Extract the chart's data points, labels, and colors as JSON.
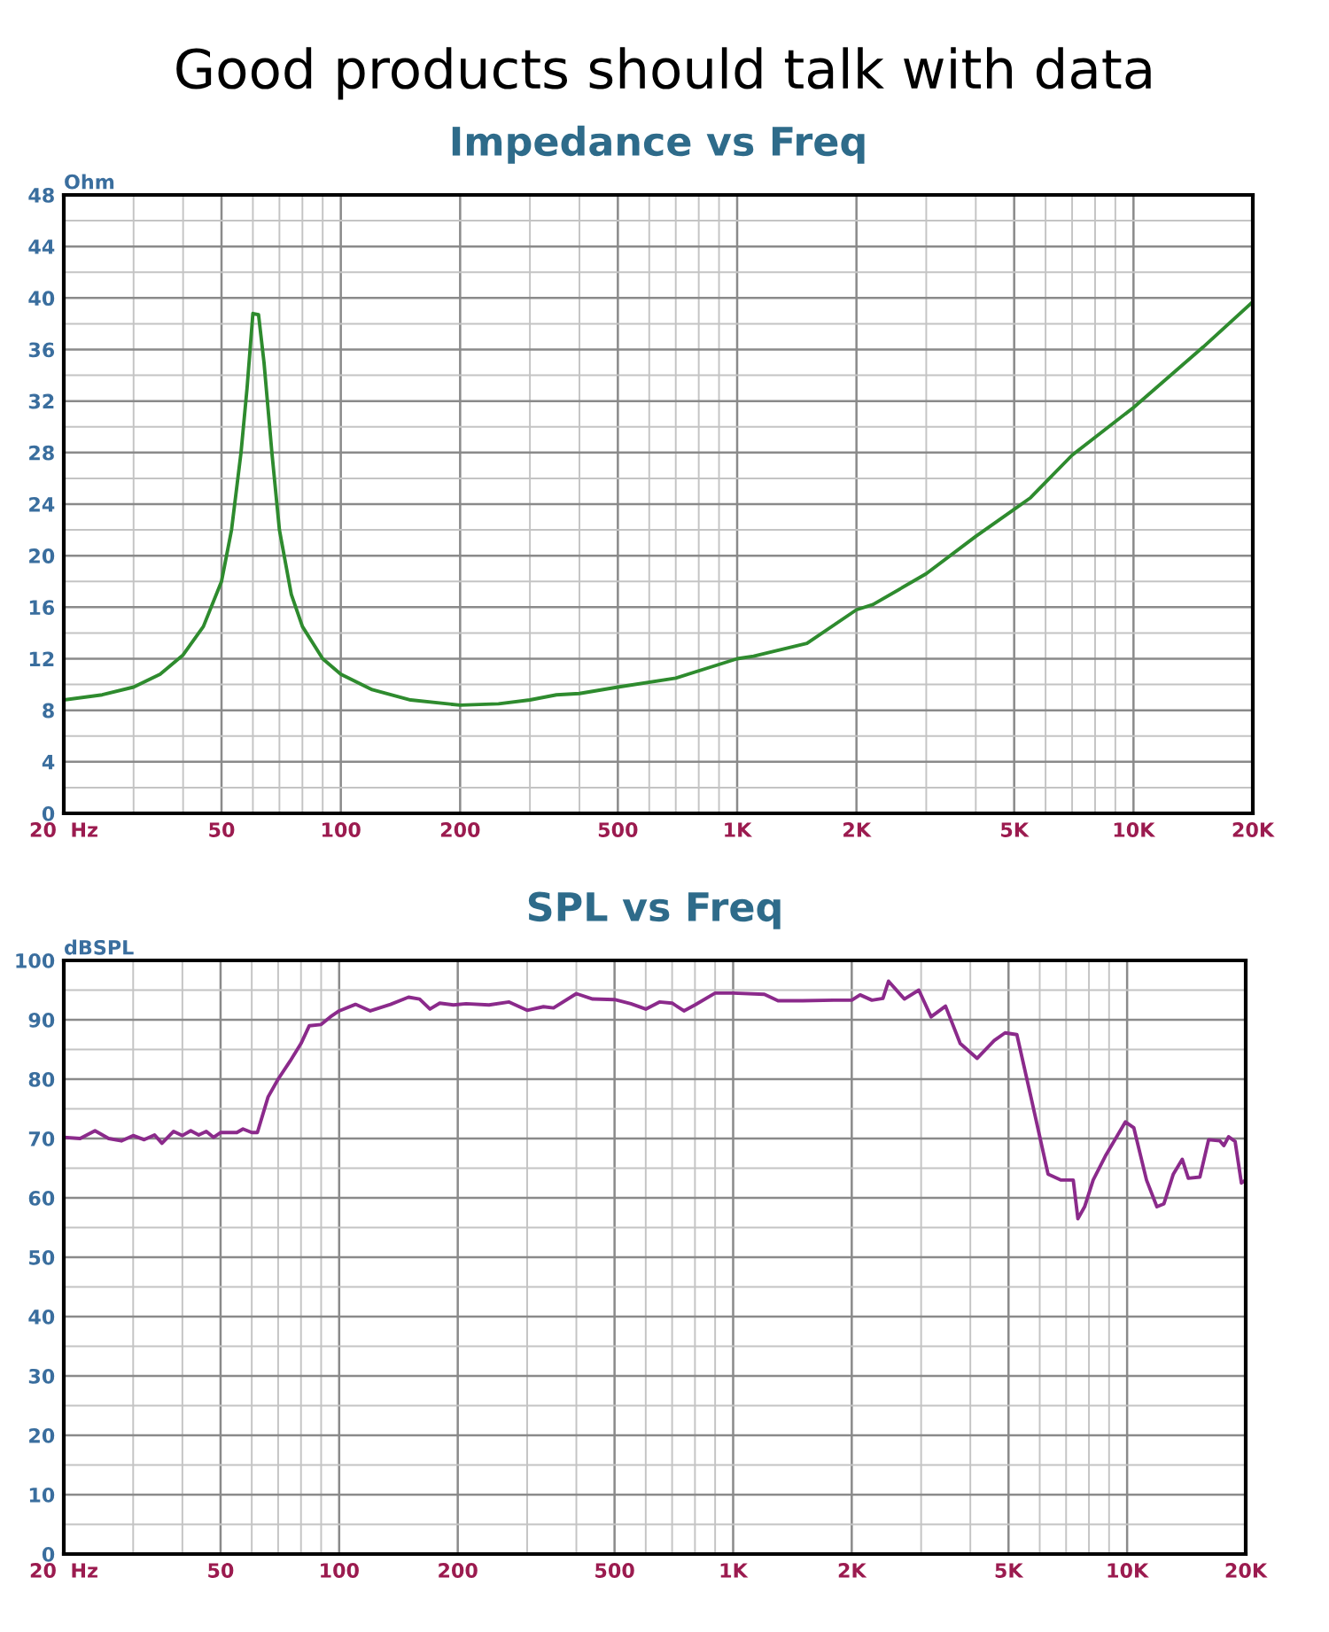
{
  "chart_data": [
    {
      "type": "line",
      "title": "Impedance vs Freq",
      "ylabel": "Ohm",
      "annotations": [
        "Good products should talk with data"
      ],
      "log": "x",
      "grid": true,
      "legend": false,
      "marker": "none",
      "line_style": "solid",
      "xlim": [
        20,
        20000
      ],
      "ylim": [
        0,
        48
      ],
      "xticks": [
        {
          "value": 20,
          "label": "20  Hz"
        },
        50,
        100,
        200,
        500,
        {
          "value": 1000,
          "label": "1K"
        },
        {
          "value": 2000,
          "label": "2K"
        },
        {
          "value": 5000,
          "label": "5K"
        },
        {
          "value": 10000,
          "label": "10K"
        },
        {
          "value": 20000,
          "label": "20K"
        }
      ],
      "yticks": [
        0,
        4,
        8,
        12,
        16,
        20,
        24,
        28,
        32,
        36,
        40,
        44,
        48
      ],
      "series": [
        {
          "color": "#2e8b2e",
          "x": [
            20,
            25,
            30,
            35,
            40,
            45,
            50,
            53,
            56,
            58,
            60,
            62,
            64,
            67,
            70,
            75,
            80,
            90,
            100,
            120,
            150,
            200,
            250,
            300,
            350,
            400,
            500,
            700,
            1000,
            1100,
            1500,
            2000,
            2200,
            3000,
            4000,
            5000,
            5500,
            7000,
            10000,
            15000,
            20000
          ],
          "values": [
            8.8,
            9.2,
            9.8,
            10.8,
            12.3,
            14.5,
            18,
            22,
            28,
            33,
            38.8,
            38.7,
            35,
            28,
            22,
            17,
            14.5,
            12,
            10.8,
            9.6,
            8.8,
            8.4,
            8.5,
            8.8,
            9.2,
            9.3,
            9.8,
            10.5,
            12.0,
            12.2,
            13.2,
            15.8,
            16.2,
            18.6,
            21.5,
            23.6,
            24.5,
            27.8,
            31.5,
            36.2,
            39.7
          ]
        }
      ]
    },
    {
      "type": "line",
      "title": "SPL vs Freq",
      "ylabel": "dBSPL",
      "log": "x",
      "grid": true,
      "legend": false,
      "marker": "none",
      "line_style": "solid",
      "xlim": [
        20,
        20000
      ],
      "ylim": [
        0,
        100
      ],
      "xticks": [
        {
          "value": 20,
          "label": "20  Hz"
        },
        50,
        100,
        200,
        500,
        {
          "value": 1000,
          "label": "1K"
        },
        {
          "value": 2000,
          "label": "2K"
        },
        {
          "value": 5000,
          "label": "5K"
        },
        {
          "value": 10000,
          "label": "10K"
        },
        {
          "value": 20000,
          "label": "20K"
        }
      ],
      "yticks": [
        0,
        10,
        20,
        30,
        40,
        50,
        60,
        70,
        80,
        90,
        100
      ],
      "series": [
        {
          "color": "#8b2a8b",
          "x": [
            20,
            22,
            24,
            26,
            28,
            30,
            32,
            34,
            35.5,
            38,
            40,
            42,
            44,
            46,
            48,
            50,
            55,
            57,
            60,
            62,
            66,
            70,
            75,
            80,
            84,
            90,
            95,
            100,
            110,
            120,
            135,
            150,
            160,
            170,
            180,
            195,
            210,
            240,
            270,
            300,
            330,
            350,
            400,
            440,
            500,
            550,
            600,
            650,
            700,
            750,
            800,
            900,
            1000,
            1200,
            1300,
            1500,
            1800,
            2000,
            2100,
            2250,
            2400,
            2480,
            2720,
            2960,
            3180,
            3460,
            3770,
            4160,
            4600,
            4900,
            5250,
            5700,
            6300,
            6800,
            7300,
            7500,
            7800,
            8200,
            8800,
            9900,
            10400,
            11200,
            11900,
            12400,
            13100,
            13800,
            14300,
            15300,
            16100,
            17200,
            17600,
            18100,
            18800,
            19500,
            20000
          ],
          "values": [
            70.2,
            70,
            71.3,
            70,
            69.6,
            70.5,
            69.8,
            70.6,
            69.2,
            71.2,
            70.5,
            71.3,
            70.6,
            71.2,
            70.2,
            71,
            71,
            71.6,
            71,
            71,
            77,
            80,
            83,
            86,
            89,
            89.2,
            90.5,
            91.5,
            92.6,
            91.5,
            92.6,
            93.8,
            93.5,
            91.8,
            92.8,
            92.5,
            92.7,
            92.5,
            93.0,
            91.6,
            92.2,
            92.0,
            94.4,
            93.5,
            93.4,
            92.7,
            91.8,
            93,
            92.8,
            91.5,
            92.5,
            94.5,
            94.5,
            94.3,
            93.2,
            93.2,
            93.3,
            93.3,
            94.2,
            93.3,
            93.6,
            96.5,
            93.5,
            95,
            90.5,
            92.3,
            86,
            83.5,
            86.5,
            87.8,
            87.5,
            77,
            64,
            63,
            63,
            56.5,
            58.5,
            63,
            67,
            72.8,
            71.8,
            63,
            58.5,
            59,
            64,
            66.5,
            63.3,
            63.5,
            69.8,
            69.6,
            68.8,
            70.3,
            69.5,
            62.5,
            63
          ]
        }
      ]
    }
  ]
}
